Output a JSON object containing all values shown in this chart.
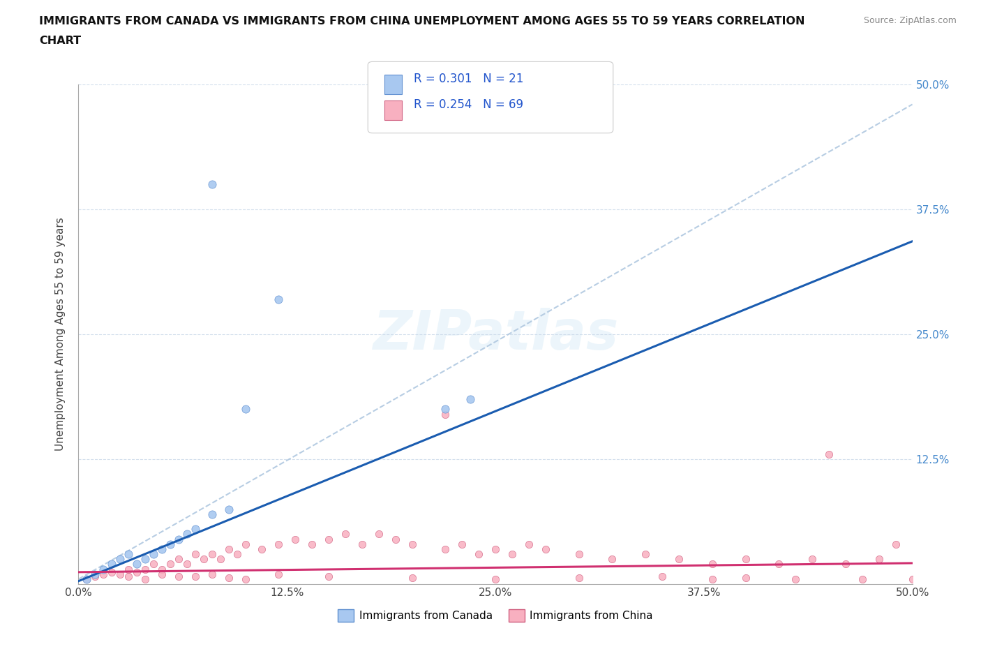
{
  "title": "IMMIGRANTS FROM CANADA VS IMMIGRANTS FROM CHINA UNEMPLOYMENT AMONG AGES 55 TO 59 YEARS CORRELATION\nCHART",
  "source": "Source: ZipAtlas.com",
  "ylabel": "Unemployment Among Ages 55 to 59 years",
  "xlim": [
    0.0,
    0.5
  ],
  "ylim": [
    0.0,
    0.5
  ],
  "xtick_labels": [
    "0.0%",
    "12.5%",
    "25.0%",
    "37.5%",
    "50.0%"
  ],
  "xtick_vals": [
    0.0,
    0.125,
    0.25,
    0.375,
    0.5
  ],
  "ytick_vals": [
    0.125,
    0.25,
    0.375,
    0.5
  ],
  "right_ytick_labels": [
    "12.5%",
    "25.0%",
    "37.5%",
    "50.0%"
  ],
  "canada_color": "#a8c8f0",
  "canada_edge": "#6090d0",
  "china_color": "#f8b0c0",
  "china_edge": "#d06080",
  "canada_line_color": "#1a5cb0",
  "china_line_color": "#d03070",
  "trendline_color": "#b0c8e0",
  "R_canada": 0.301,
  "N_canada": 21,
  "R_china": 0.254,
  "N_china": 69,
  "legend_label_canada": "Immigrants from Canada",
  "legend_label_china": "Immigrants from China",
  "watermark": "ZIPatlas",
  "canada_x": [
    0.005,
    0.01,
    0.015,
    0.02,
    0.025,
    0.03,
    0.035,
    0.04,
    0.045,
    0.05,
    0.055,
    0.06,
    0.065,
    0.07,
    0.08,
    0.09,
    0.1,
    0.22,
    0.235,
    0.08,
    0.12
  ],
  "canada_y": [
    0.005,
    0.01,
    0.015,
    0.02,
    0.025,
    0.03,
    0.02,
    0.025,
    0.03,
    0.035,
    0.04,
    0.045,
    0.05,
    0.055,
    0.07,
    0.075,
    0.175,
    0.175,
    0.185,
    0.4,
    0.285
  ],
  "china_x": [
    0.005,
    0.01,
    0.015,
    0.02,
    0.025,
    0.03,
    0.035,
    0.04,
    0.045,
    0.05,
    0.055,
    0.06,
    0.065,
    0.07,
    0.075,
    0.08,
    0.085,
    0.09,
    0.095,
    0.1,
    0.11,
    0.12,
    0.13,
    0.14,
    0.15,
    0.16,
    0.17,
    0.18,
    0.19,
    0.2,
    0.22,
    0.23,
    0.24,
    0.25,
    0.26,
    0.27,
    0.28,
    0.3,
    0.32,
    0.34,
    0.36,
    0.38,
    0.4,
    0.42,
    0.44,
    0.46,
    0.48,
    0.03,
    0.04,
    0.05,
    0.06,
    0.07,
    0.08,
    0.09,
    0.1,
    0.12,
    0.15,
    0.2,
    0.22,
    0.25,
    0.3,
    0.35,
    0.38,
    0.4,
    0.43,
    0.45,
    0.47,
    0.49,
    0.5
  ],
  "china_y": [
    0.005,
    0.008,
    0.01,
    0.012,
    0.01,
    0.015,
    0.012,
    0.015,
    0.02,
    0.015,
    0.02,
    0.025,
    0.02,
    0.03,
    0.025,
    0.03,
    0.025,
    0.035,
    0.03,
    0.04,
    0.035,
    0.04,
    0.045,
    0.04,
    0.045,
    0.05,
    0.04,
    0.05,
    0.045,
    0.04,
    0.035,
    0.04,
    0.03,
    0.035,
    0.03,
    0.04,
    0.035,
    0.03,
    0.025,
    0.03,
    0.025,
    0.02,
    0.025,
    0.02,
    0.025,
    0.02,
    0.025,
    0.008,
    0.005,
    0.01,
    0.008,
    0.008,
    0.01,
    0.006,
    0.005,
    0.01,
    0.008,
    0.006,
    0.17,
    0.005,
    0.006,
    0.008,
    0.005,
    0.006,
    0.005,
    0.13,
    0.005,
    0.04,
    0.005
  ]
}
